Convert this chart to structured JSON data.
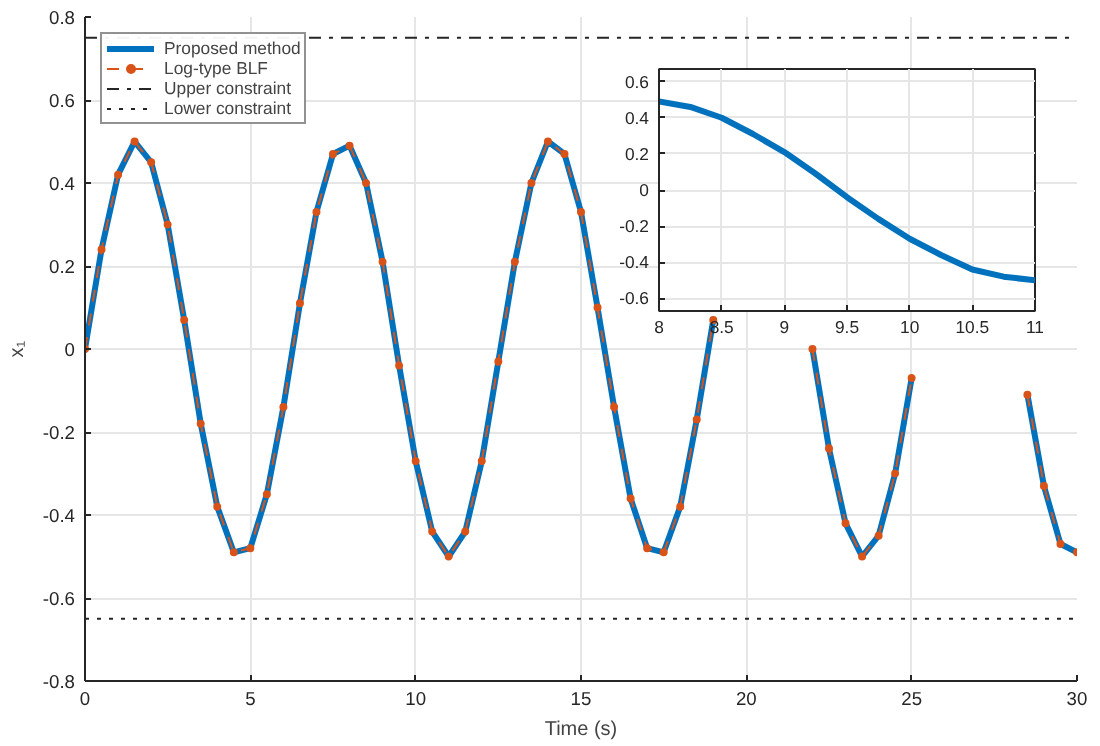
{
  "chart_data": [
    {
      "type": "line",
      "xlabel": "Time (s)",
      "ylabel": "x₁",
      "x": [
        0,
        0.5,
        1,
        1.5,
        2,
        2.5,
        3,
        3.5,
        4,
        4.5,
        5,
        5.5,
        6,
        6.5,
        7,
        7.5,
        8,
        8.5,
        9,
        9.5,
        10,
        10.5,
        11,
        11.5,
        12,
        12.5,
        13,
        13.5,
        14,
        14.5,
        15,
        15.5,
        16,
        16.5,
        17,
        17.5,
        18,
        18.5,
        19,
        19.5,
        20,
        20.5,
        21,
        21.5,
        22,
        22.5,
        23,
        23.5,
        24,
        24.5,
        25,
        25.5,
        26,
        26.5,
        27,
        27.5,
        28,
        28.5,
        29,
        29.5,
        30
      ],
      "series": [
        {
          "name": "Proposed method",
          "color": "#0072bd",
          "line_style": "solid",
          "values": [
            0,
            0.24,
            0.42,
            0.5,
            0.45,
            0.3,
            0.07,
            -0.18,
            -0.38,
            -0.49,
            -0.48,
            -0.35,
            -0.14,
            0.11,
            0.33,
            0.47,
            0.49,
            0.4,
            0.21,
            -0.04,
            -0.27,
            -0.44,
            -0.5,
            -0.44,
            -0.27,
            -0.03,
            0.21,
            0.4,
            0.5,
            0.47,
            0.33,
            0.1,
            -0.14,
            -0.36,
            -0.48,
            -0.49,
            -0.38,
            -0.17,
            0.07,
            null,
            null,
            null,
            null,
            null,
            0,
            -0.24,
            -0.42,
            -0.5,
            -0.45,
            -0.3,
            -0.07,
            null,
            null,
            null,
            null,
            null,
            null,
            -0.11,
            -0.33,
            -0.47,
            -0.49
          ]
        },
        {
          "name": "Log-type BLF",
          "color": "#d95319",
          "marker": "circle",
          "line_style": "dashed",
          "values": [
            0,
            0.24,
            0.42,
            0.5,
            0.45,
            0.3,
            0.07,
            -0.18,
            -0.38,
            -0.49,
            -0.48,
            -0.35,
            -0.14,
            0.11,
            0.33,
            0.47,
            0.49,
            0.4,
            0.21,
            -0.04,
            -0.27,
            -0.44,
            -0.5,
            -0.44,
            -0.27,
            -0.03,
            0.21,
            0.4,
            0.5,
            0.47,
            0.33,
            0.1,
            -0.14,
            -0.36,
            -0.48,
            -0.49,
            -0.38,
            -0.17,
            0.07,
            null,
            null,
            null,
            null,
            null,
            0,
            -0.24,
            -0.42,
            -0.5,
            -0.45,
            -0.3,
            -0.07,
            null,
            null,
            null,
            null,
            null,
            null,
            -0.11,
            -0.33,
            -0.47,
            -0.49
          ]
        }
      ],
      "ref_lines": [
        {
          "axis": "y",
          "value": 0.75,
          "label": "Upper constraint",
          "color": "#262626",
          "line_style": "dashdot"
        },
        {
          "axis": "y",
          "value": -0.65,
          "label": "Lower constraint",
          "color": "#262626",
          "line_style": "dotted"
        }
      ],
      "xlim": [
        0,
        30
      ],
      "ylim": [
        -0.8,
        0.8
      ],
      "xticks": [
        0,
        5,
        10,
        15,
        20,
        25,
        30
      ],
      "yticks": [
        -0.8,
        -0.6,
        -0.4,
        -0.2,
        0,
        0.2,
        0.4,
        0.6,
        0.8
      ],
      "grid": true,
      "legend": "top left"
    },
    {
      "type": "line",
      "x": [
        8,
        8.25,
        8.5,
        8.75,
        9,
        9.25,
        9.5,
        9.75,
        10,
        10.25,
        10.5,
        10.75,
        11
      ],
      "series": [
        {
          "color": "#0072bd",
          "line_style": "solid",
          "values": [
            0.49,
            0.46,
            0.4,
            0.31,
            0.21,
            0.09,
            -0.04,
            -0.16,
            -0.27,
            -0.36,
            -0.44,
            -0.48,
            -0.5
          ]
        }
      ],
      "xlim": [
        8,
        11
      ],
      "ylim": [
        -0.67,
        0.67
      ],
      "xticks": [
        8,
        8.5,
        9,
        9.5,
        10,
        10.5,
        11
      ],
      "yticks": [
        -0.6,
        -0.4,
        -0.2,
        0,
        0.2,
        0.4,
        0.6
      ],
      "grid": true,
      "legend": false
    }
  ]
}
